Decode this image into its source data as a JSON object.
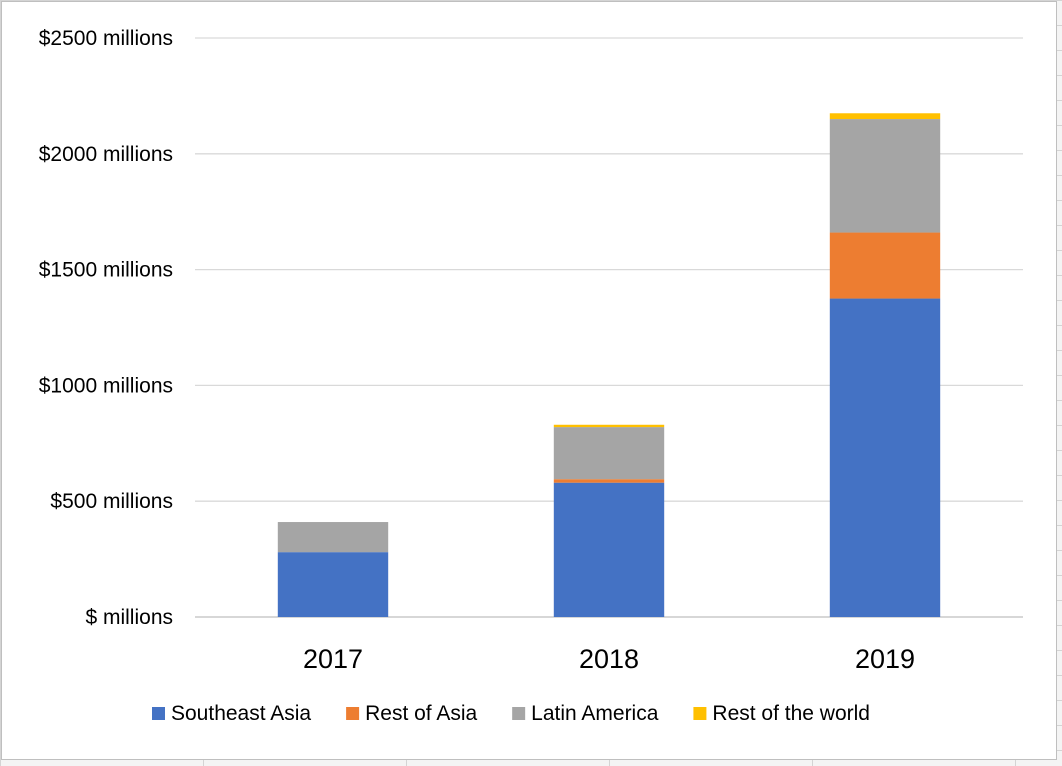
{
  "chart_data": {
    "type": "bar",
    "stacked": true,
    "categories": [
      "2017",
      "2018",
      "2019"
    ],
    "series": [
      {
        "name": "Southeast Asia",
        "color": "#4472C4",
        "values": [
          280,
          580,
          1375
        ]
      },
      {
        "name": "Rest of Asia",
        "color": "#ED7D31",
        "values": [
          0,
          15,
          285
        ]
      },
      {
        "name": "Latin America",
        "color": "#A5A5A5",
        "values": [
          130,
          225,
          490
        ]
      },
      {
        "name": "Rest of the world",
        "color": "#FFC000",
        "values": [
          0,
          10,
          25
        ]
      }
    ],
    "ylim": [
      0,
      2500
    ],
    "yticks": [
      {
        "value": 0,
        "label": "$ millions"
      },
      {
        "value": 500,
        "label": "$500 millions"
      },
      {
        "value": 1000,
        "label": "$1000 millions"
      },
      {
        "value": 1500,
        "label": "$1500 millions"
      },
      {
        "value": 2000,
        "label": "$2000 millions"
      },
      {
        "value": 2500,
        "label": "$2500 millions"
      }
    ],
    "grid": true,
    "legend_position": "bottom",
    "title": "",
    "xlabel": "",
    "ylabel": ""
  }
}
